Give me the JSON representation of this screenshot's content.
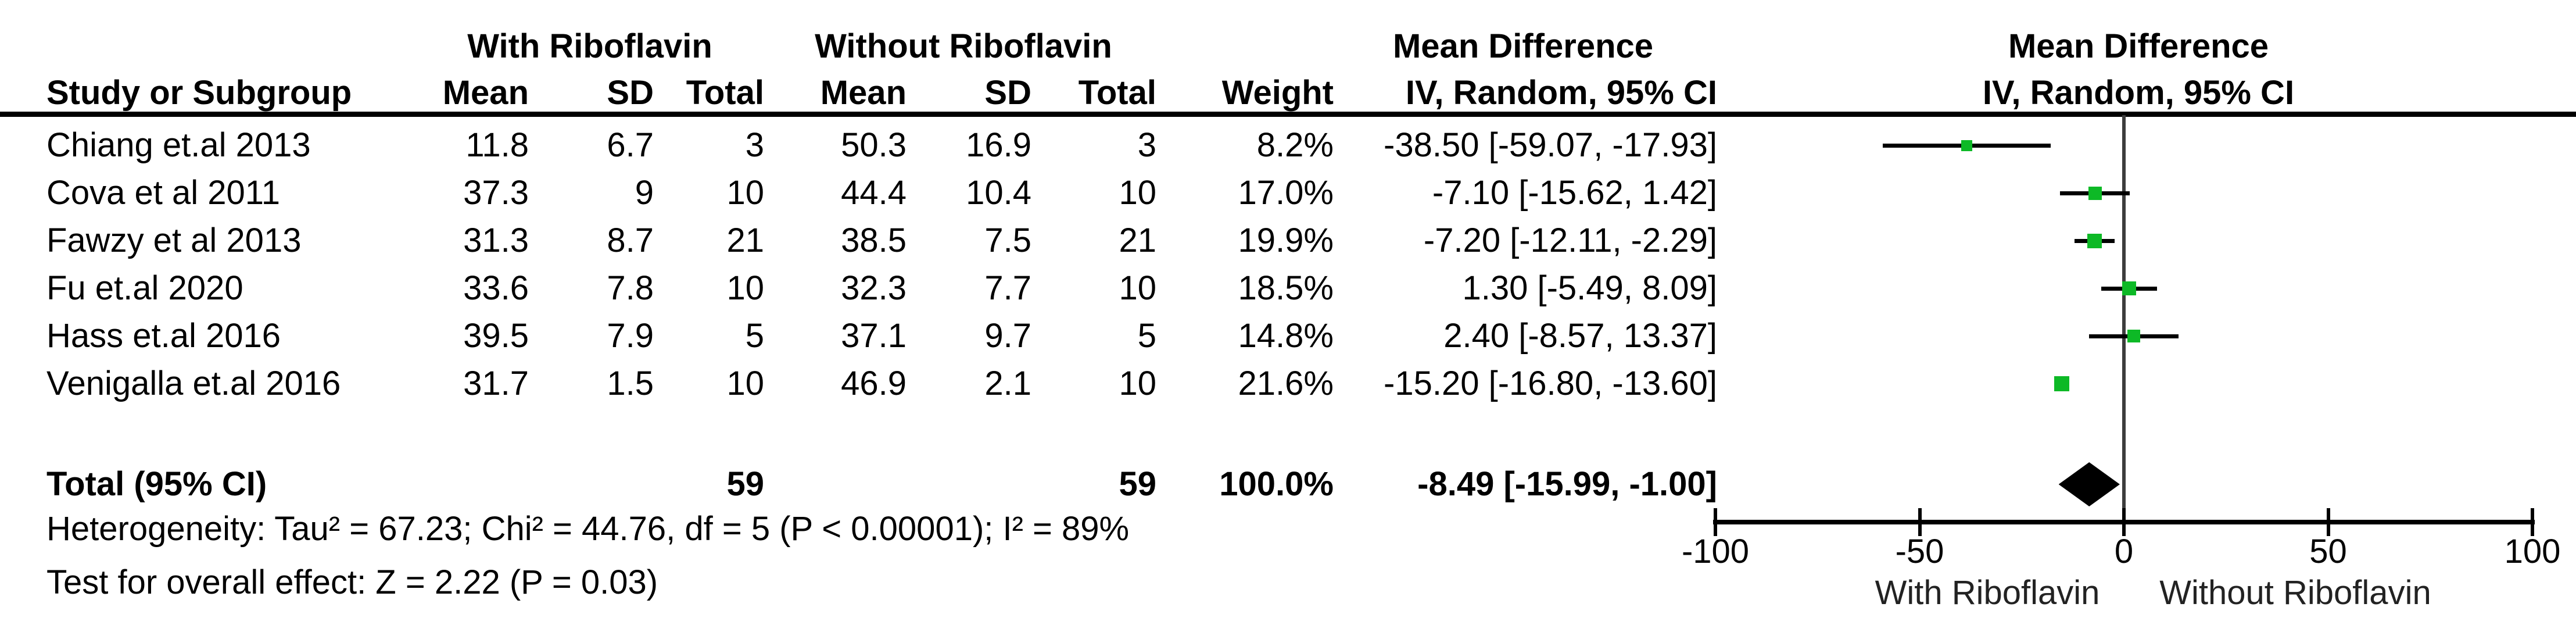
{
  "table": {
    "group1": "With Riboflavin",
    "group2": "Without Riboflavin",
    "effect_header": "Mean Difference",
    "study_header": "Study or Subgroup",
    "mean_header": "Mean",
    "sd_header": "SD",
    "total_header": "Total",
    "weight_header": "Weight",
    "method_header": "IV, Random, 95% CI"
  },
  "footer": {
    "heterogeneity": "Heterogeneity: Tau² = 67.23; Chi² = 44.76, df = 5 (P < 0.00001); I² = 89%",
    "overall_effect": "Test for overall effect: Z = 2.22 (P = 0.03)"
  },
  "colors": {
    "square_green": "#0DB926",
    "diamond_black": "#000000",
    "ci_line_black": "#000000",
    "zero_line_gray": "#3d3d3d"
  },
  "chart_data": {
    "type": "forest",
    "effect_measure": "Mean Difference",
    "method": "IV, Random, 95% CI",
    "xlim": [
      -100,
      100
    ],
    "xticks": [
      -100,
      -50,
      0,
      50,
      100
    ],
    "axis_label_left": "With Riboflavin",
    "axis_label_right": "Without Riboflavin",
    "studies": [
      {
        "name": "Chiang et.al 2013",
        "mean1": "11.8",
        "sd1": "6.7",
        "n1": "3",
        "mean2": "50.3",
        "sd2": "16.9",
        "n2": "3",
        "weight": "8.2%",
        "weight_pct": 8.2,
        "estimate": -38.5,
        "ci_low": -59.07,
        "ci_high": -17.93,
        "ci_text": "-38.50 [-59.07, -17.93]"
      },
      {
        "name": "Cova et al 2011",
        "mean1": "37.3",
        "sd1": "9",
        "n1": "10",
        "mean2": "44.4",
        "sd2": "10.4",
        "n2": "10",
        "weight": "17.0%",
        "weight_pct": 17.0,
        "estimate": -7.1,
        "ci_low": -15.62,
        "ci_high": 1.42,
        "ci_text": "-7.10 [-15.62, 1.42]"
      },
      {
        "name": "Fawzy et al 2013",
        "mean1": "31.3",
        "sd1": "8.7",
        "n1": "21",
        "mean2": "38.5",
        "sd2": "7.5",
        "n2": "21",
        "weight": "19.9%",
        "weight_pct": 19.9,
        "estimate": -7.2,
        "ci_low": -12.11,
        "ci_high": -2.29,
        "ci_text": "-7.20 [-12.11, -2.29]"
      },
      {
        "name": "Fu et.al 2020",
        "mean1": "33.6",
        "sd1": "7.8",
        "n1": "10",
        "mean2": "32.3",
        "sd2": "7.7",
        "n2": "10",
        "weight": "18.5%",
        "weight_pct": 18.5,
        "estimate": 1.3,
        "ci_low": -5.49,
        "ci_high": 8.09,
        "ci_text": "1.30 [-5.49, 8.09]"
      },
      {
        "name": "Hass et.al 2016",
        "mean1": "39.5",
        "sd1": "7.9",
        "n1": "5",
        "mean2": "37.1",
        "sd2": "9.7",
        "n2": "5",
        "weight": "14.8%",
        "weight_pct": 14.8,
        "estimate": 2.4,
        "ci_low": -8.57,
        "ci_high": 13.37,
        "ci_text": "2.40 [-8.57, 13.37]"
      },
      {
        "name": "Venigalla et.al 2016",
        "mean1": "31.7",
        "sd1": "1.5",
        "n1": "10",
        "mean2": "46.9",
        "sd2": "2.1",
        "n2": "10",
        "weight": "21.6%",
        "weight_pct": 21.6,
        "estimate": -15.2,
        "ci_low": -16.8,
        "ci_high": -13.6,
        "ci_text": "-15.20 [-16.80, -13.60]"
      }
    ],
    "total": {
      "label": "Total (95% CI)",
      "n1": "59",
      "n2": "59",
      "weight": "100.0%",
      "weight_pct": 100.0,
      "estimate": -8.49,
      "ci_low": -15.99,
      "ci_high": -1.0,
      "ci_text": "-8.49 [-15.99, -1.00]"
    }
  }
}
